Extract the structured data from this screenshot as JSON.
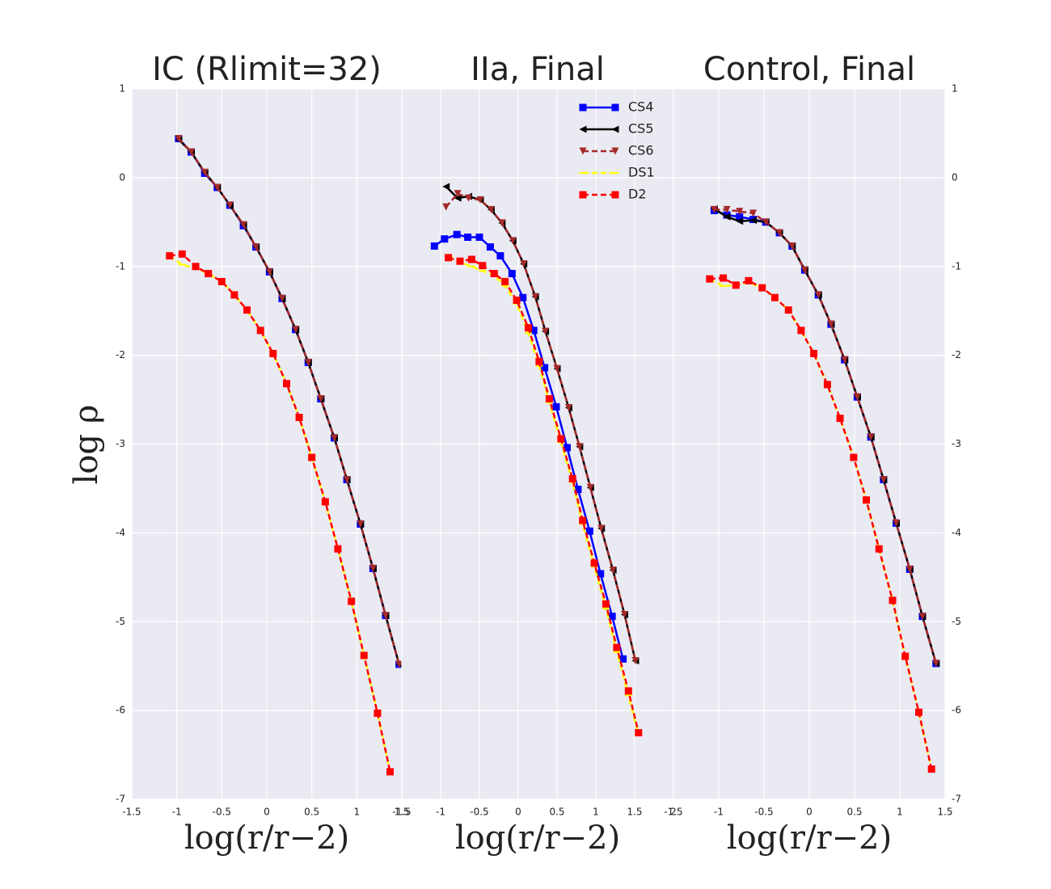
{
  "chart_data": [
    {
      "type": "line",
      "title": "IC (Rlimit=32)",
      "xlabel": "log(r/r−2)",
      "ylabel": "log ρ",
      "xlim": [
        -1.5,
        1.5
      ],
      "xticks": [
        -1.5,
        -1.0,
        -0.5,
        0.0,
        0.5,
        1.0,
        1.5
      ],
      "ylim": [
        -7,
        1
      ],
      "yticks": [
        -7,
        -6,
        -5,
        -4,
        -3,
        -2,
        -1,
        0,
        1
      ],
      "ytick_side": "left",
      "grid": true,
      "series": [
        {
          "name": "CS4",
          "color": "#0000ff",
          "linestyle": "solid",
          "marker": "square",
          "x": [
            -0.98,
            -0.84,
            -0.69,
            -0.55,
            -0.41,
            -0.26,
            -0.12,
            0.03,
            0.17,
            0.32,
            0.46,
            0.6,
            0.75,
            0.89,
            1.04,
            1.18,
            1.32,
            1.47
          ],
          "values": [
            0.44,
            0.29,
            0.05,
            -0.11,
            -0.31,
            -0.54,
            -0.78,
            -1.06,
            -1.36,
            -1.71,
            -2.08,
            -2.49,
            -2.93,
            -3.4,
            -3.9,
            -4.4,
            -4.93,
            -5.48
          ]
        },
        {
          "name": "CS5",
          "color": "#000000",
          "linestyle": "solid",
          "marker": "triangle-left",
          "x": [
            -0.98,
            -0.84,
            -0.69,
            -0.55,
            -0.41,
            -0.26,
            -0.12,
            0.03,
            0.17,
            0.32,
            0.46,
            0.6,
            0.75,
            0.89,
            1.04,
            1.18,
            1.32,
            1.47
          ],
          "values": [
            0.43,
            0.29,
            0.06,
            -0.11,
            -0.31,
            -0.53,
            -0.78,
            -1.06,
            -1.36,
            -1.71,
            -2.08,
            -2.49,
            -2.93,
            -3.4,
            -3.9,
            -4.4,
            -4.93,
            -5.48
          ]
        },
        {
          "name": "CS6",
          "color": "#a52a2a",
          "linestyle": "dashed",
          "marker": "triangle-down",
          "x": [
            -0.98,
            -0.84,
            -0.69,
            -0.55,
            -0.41,
            -0.26,
            -0.12,
            0.03,
            0.17,
            0.32,
            0.46,
            0.6,
            0.75,
            0.89,
            1.04,
            1.18,
            1.32,
            1.47
          ],
          "values": [
            0.44,
            0.29,
            0.06,
            -0.11,
            -0.31,
            -0.53,
            -0.78,
            -1.06,
            -1.36,
            -1.71,
            -2.08,
            -2.49,
            -2.93,
            -3.4,
            -3.9,
            -4.4,
            -4.93,
            -5.48
          ]
        },
        {
          "name": "DS1",
          "color": "#ffff00",
          "linestyle": "dashed",
          "marker": "hline",
          "x": [
            -1.08,
            -0.94,
            -0.79,
            -0.65,
            -0.5,
            -0.36,
            -0.22,
            -0.07,
            0.07,
            0.22,
            0.36,
            0.5,
            0.65,
            0.79,
            0.94,
            1.08,
            1.23,
            1.37
          ],
          "values": [
            -0.88,
            -0.98,
            -1.02,
            -1.08,
            -1.17,
            -1.32,
            -1.49,
            -1.72,
            -1.98,
            -2.32,
            -2.7,
            -3.15,
            -3.65,
            -4.18,
            -4.77,
            -5.38,
            -6.03,
            -6.69
          ]
        },
        {
          "name": "D2",
          "color": "#ff0000",
          "linestyle": "dashed",
          "marker": "square",
          "x": [
            -1.08,
            -0.94,
            -0.79,
            -0.65,
            -0.5,
            -0.36,
            -0.22,
            -0.07,
            0.07,
            0.22,
            0.36,
            0.5,
            0.65,
            0.79,
            0.94,
            1.08,
            1.23,
            1.37
          ],
          "values": [
            -0.88,
            -0.86,
            -1.0,
            -1.08,
            -1.17,
            -1.32,
            -1.49,
            -1.72,
            -1.98,
            -2.32,
            -2.7,
            -3.15,
            -3.65,
            -4.18,
            -4.77,
            -5.38,
            -6.03,
            -6.69
          ]
        }
      ]
    },
    {
      "type": "line",
      "title": "IIa, Final",
      "xlabel": "log(r/r−2)",
      "xlim": [
        -1.5,
        2.0
      ],
      "xticks": [
        -1.5,
        -1.0,
        -0.5,
        0.0,
        0.5,
        1.0,
        1.5,
        2.0
      ],
      "ylim": [
        -7,
        1
      ],
      "yticks": [
        -7,
        -6,
        -5,
        -4,
        -3,
        -2,
        -1,
        0,
        1
      ],
      "grid": true,
      "legend": "upper right",
      "series": [
        {
          "name": "CS4",
          "color": "#0000ff",
          "linestyle": "solid",
          "marker": "square",
          "x": [
            -1.08,
            -0.95,
            -0.79,
            -0.65,
            -0.5,
            -0.36,
            -0.23,
            -0.08,
            0.06,
            0.2,
            0.34,
            0.49,
            0.63,
            0.77,
            0.92,
            1.06,
            1.21,
            1.35
          ],
          "values": [
            -0.77,
            -0.69,
            -0.64,
            -0.67,
            -0.67,
            -0.78,
            -0.88,
            -1.08,
            -1.35,
            -1.72,
            -2.14,
            -2.58,
            -3.04,
            -3.51,
            -3.98,
            -4.46,
            -4.94,
            -5.42
          ]
        },
        {
          "name": "CS5",
          "color": "#000000",
          "linestyle": "solid",
          "marker": "triangle-left",
          "x": [
            -0.93,
            -0.78,
            -0.64,
            -0.49,
            -0.35,
            -0.21,
            -0.07,
            0.07,
            0.22,
            0.35,
            0.5,
            0.65,
            0.79,
            0.93,
            1.07,
            1.22,
            1.37,
            1.51
          ],
          "values": [
            -0.1,
            -0.23,
            -0.21,
            -0.25,
            -0.36,
            -0.51,
            -0.71,
            -0.97,
            -1.34,
            -1.73,
            -2.15,
            -2.59,
            -3.03,
            -3.49,
            -3.95,
            -4.42,
            -4.92,
            -5.44
          ]
        },
        {
          "name": "CS6",
          "color": "#a52a2a",
          "linestyle": "dashed",
          "marker": "triangle-down",
          "x": [
            -0.93,
            -0.78,
            -0.64,
            -0.49,
            -0.35,
            -0.21,
            -0.07,
            0.07,
            0.22,
            0.35,
            0.5,
            0.65,
            0.79,
            0.93,
            1.07,
            1.22,
            1.37,
            1.51
          ],
          "values": [
            -0.33,
            -0.18,
            -0.23,
            -0.25,
            -0.36,
            -0.51,
            -0.71,
            -0.97,
            -1.34,
            -1.73,
            -2.15,
            -2.59,
            -3.03,
            -3.49,
            -3.95,
            -4.42,
            -4.92,
            -5.44
          ]
        },
        {
          "name": "DS1",
          "color": "#ffff00",
          "linestyle": "dashed",
          "marker": "hline",
          "x": [
            -0.9,
            -0.75,
            -0.6,
            -0.46,
            -0.31,
            -0.17,
            -0.02,
            0.13,
            0.27,
            0.4,
            0.55,
            0.7,
            0.83,
            0.98,
            1.13,
            1.27,
            1.42,
            1.55
          ],
          "values": [
            -0.88,
            -0.95,
            -1.0,
            -1.05,
            -1.1,
            -1.22,
            -1.42,
            -1.75,
            -2.12,
            -2.53,
            -2.98,
            -3.43,
            -3.9,
            -4.38,
            -4.85,
            -5.34,
            -5.83,
            -6.28
          ]
        },
        {
          "name": "D2",
          "color": "#ff0000",
          "linestyle": "dashed",
          "marker": "square",
          "x": [
            -0.9,
            -0.75,
            -0.6,
            -0.46,
            -0.31,
            -0.17,
            -0.02,
            0.13,
            0.27,
            0.4,
            0.55,
            0.7,
            0.83,
            0.98,
            1.13,
            1.27,
            1.42,
            1.55
          ],
          "values": [
            -0.9,
            -0.94,
            -0.92,
            -0.99,
            -1.08,
            -1.17,
            -1.38,
            -1.69,
            -2.07,
            -2.49,
            -2.94,
            -3.39,
            -3.86,
            -4.34,
            -4.8,
            -5.29,
            -5.78,
            -6.25
          ]
        }
      ]
    },
    {
      "type": "line",
      "title": "Control, Final",
      "xlabel": "log(r/r−2)",
      "xlim": [
        -1.5,
        1.5
      ],
      "xticks": [
        -1.5,
        -1.0,
        -0.5,
        0.0,
        0.5,
        1.0,
        1.5
      ],
      "ylim": [
        -7,
        1
      ],
      "yticks": [
        -7,
        -6,
        -5,
        -4,
        -3,
        -2,
        -1,
        0,
        1
      ],
      "ytick_side": "right",
      "grid": true,
      "series": [
        {
          "name": "CS4",
          "color": "#0000ff",
          "linestyle": "solid",
          "marker": "square",
          "x": [
            -1.05,
            -0.91,
            -0.77,
            -0.62,
            -0.48,
            -0.33,
            -0.19,
            -0.05,
            0.1,
            0.24,
            0.39,
            0.53,
            0.68,
            0.82,
            0.96,
            1.11,
            1.25,
            1.4
          ],
          "values": [
            -0.37,
            -0.42,
            -0.44,
            -0.47,
            -0.5,
            -0.62,
            -0.77,
            -1.04,
            -1.32,
            -1.65,
            -2.05,
            -2.47,
            -2.92,
            -3.4,
            -3.89,
            -4.41,
            -4.94,
            -5.47
          ]
        },
        {
          "name": "CS5",
          "color": "#000000",
          "linestyle": "solid",
          "marker": "triangle-left",
          "x": [
            -1.05,
            -0.91,
            -0.77,
            -0.62,
            -0.48,
            -0.33,
            -0.19,
            -0.05,
            0.1,
            0.24,
            0.39,
            0.53,
            0.68,
            0.82,
            0.96,
            1.11,
            1.25,
            1.4
          ],
          "values": [
            -0.35,
            -0.44,
            -0.49,
            -0.48,
            -0.5,
            -0.62,
            -0.77,
            -1.04,
            -1.32,
            -1.65,
            -2.05,
            -2.47,
            -2.92,
            -3.4,
            -3.89,
            -4.41,
            -4.94,
            -5.47
          ]
        },
        {
          "name": "CS6",
          "color": "#a52a2a",
          "linestyle": "dashed",
          "marker": "triangle-down",
          "x": [
            -1.05,
            -0.91,
            -0.77,
            -0.62,
            -0.48,
            -0.33,
            -0.19,
            -0.05,
            0.1,
            0.24,
            0.39,
            0.53,
            0.68,
            0.82,
            0.96,
            1.11,
            1.25,
            1.4
          ],
          "values": [
            -0.36,
            -0.36,
            -0.38,
            -0.4,
            -0.5,
            -0.62,
            -0.77,
            -1.04,
            -1.32,
            -1.65,
            -2.05,
            -2.47,
            -2.92,
            -3.4,
            -3.89,
            -4.41,
            -4.94,
            -5.47
          ]
        },
        {
          "name": "DS1",
          "color": "#ffff00",
          "linestyle": "dashed",
          "marker": "hline",
          "x": [
            -1.1,
            -0.95,
            -0.81,
            -0.67,
            -0.52,
            -0.38,
            -0.23,
            -0.09,
            0.05,
            0.2,
            0.34,
            0.49,
            0.63,
            0.77,
            0.92,
            1.06,
            1.21,
            1.35
          ],
          "values": [
            -1.14,
            -1.22,
            -1.21,
            -1.18,
            -1.24,
            -1.35,
            -1.49,
            -1.72,
            -1.98,
            -2.33,
            -2.71,
            -3.15,
            -3.63,
            -4.18,
            -4.76,
            -5.39,
            -6.02,
            -6.66
          ]
        },
        {
          "name": "D2",
          "color": "#ff0000",
          "linestyle": "dashed",
          "marker": "square",
          "x": [
            -1.1,
            -0.95,
            -0.81,
            -0.67,
            -0.52,
            -0.38,
            -0.23,
            -0.09,
            0.05,
            0.2,
            0.34,
            0.49,
            0.63,
            0.77,
            0.92,
            1.06,
            1.21,
            1.35
          ],
          "values": [
            -1.14,
            -1.13,
            -1.21,
            -1.16,
            -1.24,
            -1.35,
            -1.49,
            -1.72,
            -1.98,
            -2.33,
            -2.71,
            -3.15,
            -3.63,
            -4.18,
            -4.76,
            -5.39,
            -6.02,
            -6.66
          ]
        }
      ]
    }
  ]
}
